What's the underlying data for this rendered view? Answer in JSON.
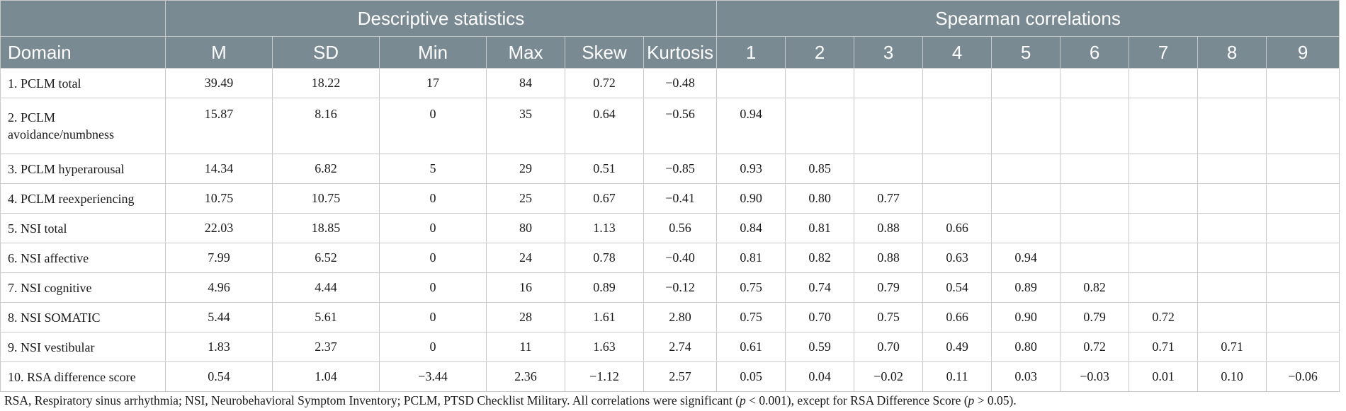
{
  "headers": {
    "domain": "Domain",
    "descriptive": "Descriptive statistics",
    "spearman": "Spearman correlations",
    "desc_cols": [
      "M",
      "SD",
      "Min",
      "Max",
      "Skew",
      "Kurtosis"
    ],
    "corr_cols": [
      "1",
      "2",
      "3",
      "4",
      "5",
      "6",
      "7",
      "8",
      "9"
    ]
  },
  "rows": [
    {
      "domain": "1. PCLM total",
      "desc": [
        "39.49",
        "18.22",
        "17",
        "84",
        "0.72",
        "−0.48"
      ],
      "corr": [
        "",
        "",
        "",
        "",
        "",
        "",
        "",
        "",
        ""
      ]
    },
    {
      "domain": "2. PCLM avoidance/numbness",
      "desc": [
        "15.87",
        "8.16",
        "0",
        "35",
        "0.64",
        "−0.56"
      ],
      "corr": [
        "0.94",
        "",
        "",
        "",
        "",
        "",
        "",
        "",
        ""
      ]
    },
    {
      "domain": "3. PCLM hyperarousal",
      "desc": [
        "14.34",
        "6.82",
        "5",
        "29",
        "0.51",
        "−0.85"
      ],
      "corr": [
        "0.93",
        "0.85",
        "",
        "",
        "",
        "",
        "",
        "",
        ""
      ]
    },
    {
      "domain": "4. PCLM reexperiencing",
      "desc": [
        "10.75",
        "10.75",
        "0",
        "25",
        "0.67",
        "−0.41"
      ],
      "corr": [
        "0.90",
        "0.80",
        "0.77",
        "",
        "",
        "",
        "",
        "",
        ""
      ]
    },
    {
      "domain": "5. NSI total",
      "desc": [
        "22.03",
        "18.85",
        "0",
        "80",
        "1.13",
        "0.56"
      ],
      "corr": [
        "0.84",
        "0.81",
        "0.88",
        "0.66",
        "",
        "",
        "",
        "",
        ""
      ]
    },
    {
      "domain": "6. NSI affective",
      "desc": [
        "7.99",
        "6.52",
        "0",
        "24",
        "0.78",
        "−0.40"
      ],
      "corr": [
        "0.81",
        "0.82",
        "0.88",
        "0.63",
        "0.94",
        "",
        "",
        "",
        ""
      ]
    },
    {
      "domain": "7. NSI cognitive",
      "desc": [
        "4.96",
        "4.44",
        "0",
        "16",
        "0.89",
        "−0.12"
      ],
      "corr": [
        "0.75",
        "0.74",
        "0.79",
        "0.54",
        "0.89",
        "0.82",
        "",
        "",
        ""
      ]
    },
    {
      "domain": "8. NSI SOMATIC",
      "desc": [
        "5.44",
        "5.61",
        "0",
        "28",
        "1.61",
        "2.80"
      ],
      "corr": [
        "0.75",
        "0.70",
        "0.75",
        "0.66",
        "0.90",
        "0.79",
        "0.72",
        "",
        ""
      ]
    },
    {
      "domain": "9. NSI vestibular",
      "desc": [
        "1.83",
        "2.37",
        "0",
        "11",
        "1.63",
        "2.74"
      ],
      "corr": [
        "0.61",
        "0.59",
        "0.70",
        "0.49",
        "0.80",
        "0.72",
        "0.71",
        "0.71",
        ""
      ]
    },
    {
      "domain": "10. RSA difference score",
      "desc": [
        "0.54",
        "1.04",
        "−3.44",
        "2.36",
        "−1.12",
        "2.57"
      ],
      "corr": [
        "0.05",
        "0.04",
        "−0.02",
        "0.11",
        "0.03",
        "−0.03",
        "0.01",
        "0.10",
        "−0.06"
      ]
    }
  ],
  "footnote": {
    "text1": "RSA, Respiratory sinus arrhythmia; NSI, Neurobehavioral Symptom Inventory; PCLM, PTSD Checklist Military. All correlations were significant (",
    "p1": "p",
    "text2": " < 0.001), except for RSA Difference Score (",
    "p2": "p",
    "text3": " > 0.05)."
  }
}
